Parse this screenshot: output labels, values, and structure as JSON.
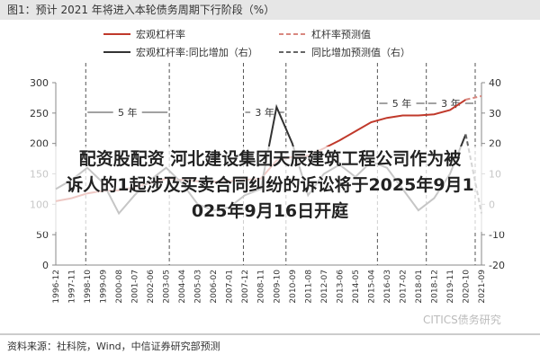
{
  "chart_data": {
    "type": "line",
    "title": "图1：预计 2021 年将进入本轮债务周期下行阶段（%）",
    "categories": [
      "1996-12",
      "1997-11",
      "1998-10",
      "1999-09",
      "2000-08",
      "2001-07",
      "2002-06",
      "2003-05",
      "2004-04",
      "2005-03",
      "2006-02",
      "2007-01",
      "2007-12",
      "2008-11",
      "2009-10",
      "2010-09",
      "2011-08",
      "2012-07",
      "2013-06",
      "2014-05",
      "2015-04",
      "2016-03",
      "2017-02",
      "2018-01",
      "2018-12",
      "2019-11",
      "2020-10",
      "2021-09"
    ],
    "series": [
      {
        "name": "宏观杠杆率",
        "color": "#c0392b",
        "dash": false,
        "axis": "y",
        "values": [
          105,
          110,
          118,
          122,
          123,
          128,
          135,
          142,
          140,
          138,
          137,
          138,
          140,
          142,
          172,
          178,
          180,
          192,
          205,
          220,
          235,
          242,
          246,
          246,
          248,
          255,
          272,
          null
        ]
      },
      {
        "name": "杠杆率预测值",
        "color": "#d98880",
        "dash": true,
        "axis": "y",
        "values": [
          null,
          null,
          null,
          null,
          null,
          null,
          null,
          null,
          null,
          null,
          null,
          null,
          null,
          null,
          null,
          null,
          null,
          null,
          null,
          null,
          null,
          null,
          null,
          null,
          null,
          null,
          272,
          278
        ]
      },
      {
        "name": "宏观杠杆率:同比增加（右）",
        "color": "#333333",
        "dash": false,
        "axis": "y2",
        "values": [
          5,
          8,
          12,
          7,
          -3,
          3,
          8,
          12,
          7,
          0,
          -2,
          -1,
          3,
          5,
          32,
          20,
          3,
          10,
          13,
          9,
          14,
          12,
          5,
          -2,
          2,
          10,
          23,
          null
        ]
      },
      {
        "name": "同比增加预测值（右）",
        "color": "#666666",
        "dash": true,
        "axis": "y2",
        "values": [
          null,
          null,
          null,
          null,
          null,
          null,
          null,
          null,
          null,
          null,
          null,
          null,
          null,
          null,
          null,
          null,
          null,
          null,
          null,
          null,
          null,
          null,
          null,
          null,
          null,
          null,
          23,
          -3
        ]
      }
    ],
    "ylim": [
      0,
      300
    ],
    "yticks": [
      0,
      50,
      100,
      150,
      200,
      250,
      300
    ],
    "y2lim": [
      -20,
      40
    ],
    "y2ticks": [
      -20,
      -10,
      0,
      10,
      20,
      30,
      40
    ],
    "annotations": [
      "5 年",
      "3 年",
      "5 年",
      "3 年"
    ],
    "overlay_text": [
      "配资股配资 河北建设集团天辰建筑工程公司作为被",
      "诉人的1起涉及买卖合同纠纷的诉讼将于2025年9月1",
      "025年9月16日开庭"
    ],
    "source": "资料来源：社科院，Wind，中信证券研究部预测",
    "watermark": "CITICS债务研究"
  }
}
